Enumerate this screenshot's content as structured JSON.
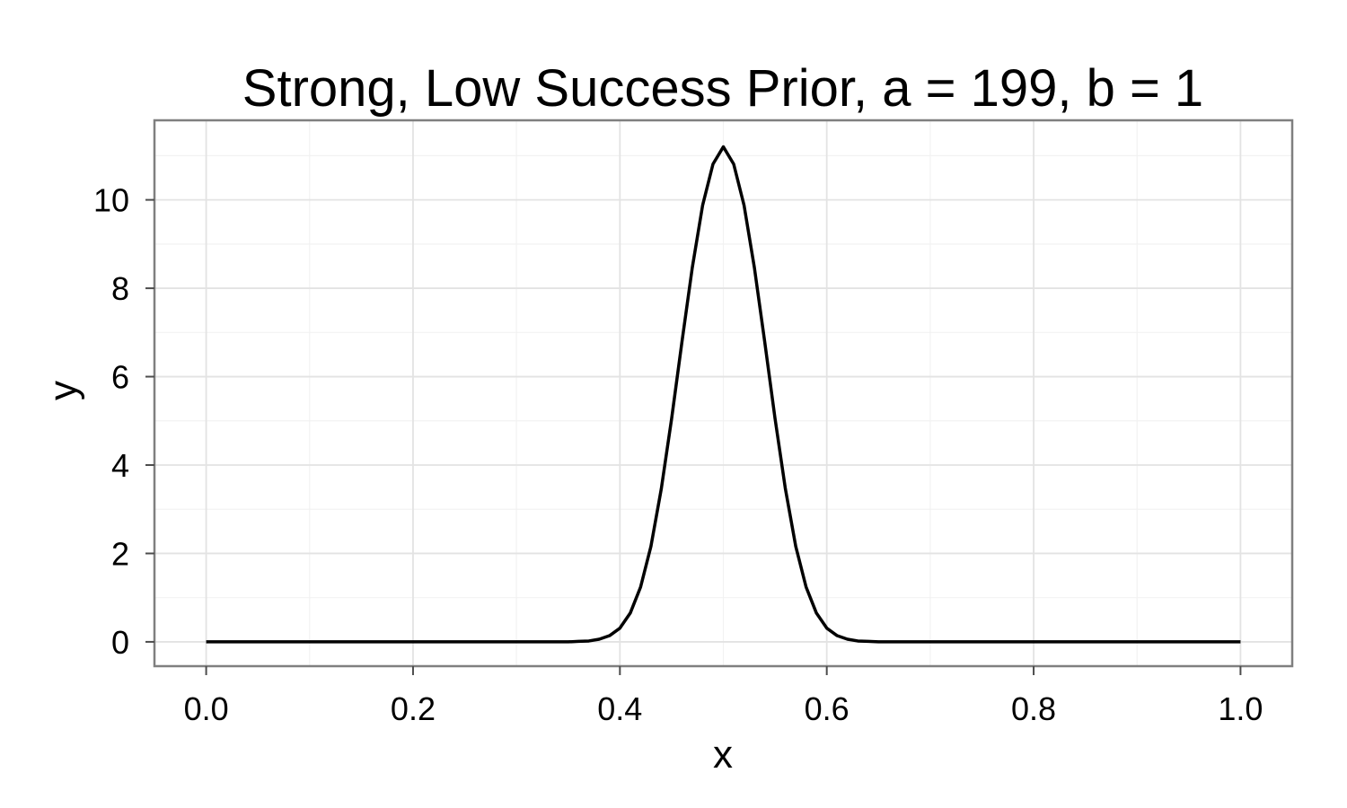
{
  "chart_data": {
    "type": "line",
    "title": "Strong, Low Success Prior, a = 199, b = 1",
    "xlabel": "x",
    "ylabel": "y",
    "xlim": [
      -0.05,
      1.05
    ],
    "ylim": [
      -0.55,
      11.8
    ],
    "x_ticks": [
      0.0,
      0.2,
      0.4,
      0.6,
      0.8,
      1.0
    ],
    "x_tick_labels": [
      "0.0",
      "0.2",
      "0.4",
      "0.6",
      "0.8",
      "1.0"
    ],
    "y_ticks": [
      0,
      2,
      4,
      6,
      8,
      10
    ],
    "y_tick_labels": [
      "0",
      "2",
      "4",
      "6",
      "8",
      "10"
    ],
    "x_minor_ticks": [
      0.1,
      0.3,
      0.5,
      0.7,
      0.9
    ],
    "y_minor_ticks": [
      1,
      3,
      5,
      7,
      9,
      11
    ],
    "grid": true,
    "series": [
      {
        "color": "#000000",
        "x": [
          0.0,
          0.05,
          0.1,
          0.15,
          0.2,
          0.25,
          0.3,
          0.35,
          0.36,
          0.37,
          0.38,
          0.39,
          0.4,
          0.41,
          0.42,
          0.43,
          0.44,
          0.45,
          0.46,
          0.47,
          0.48,
          0.49,
          0.5,
          0.51,
          0.52,
          0.53,
          0.54,
          0.55,
          0.56,
          0.57,
          0.58,
          0.59,
          0.6,
          0.61,
          0.62,
          0.63,
          0.64,
          0.65,
          0.7,
          0.75,
          0.8,
          0.85,
          0.9,
          0.95,
          1.0
        ],
        "y": [
          0,
          0,
          0,
          0,
          0,
          0,
          0,
          0.0,
          0.01,
          0.02,
          0.06,
          0.14,
          0.31,
          0.65,
          1.24,
          2.16,
          3.46,
          5.05,
          6.79,
          8.47,
          9.88,
          10.81,
          11.2,
          10.81,
          9.88,
          8.47,
          6.79,
          5.05,
          3.46,
          2.16,
          1.24,
          0.65,
          0.31,
          0.14,
          0.06,
          0.02,
          0.01,
          0.0,
          0,
          0,
          0,
          0,
          0,
          0,
          0
        ]
      }
    ]
  }
}
